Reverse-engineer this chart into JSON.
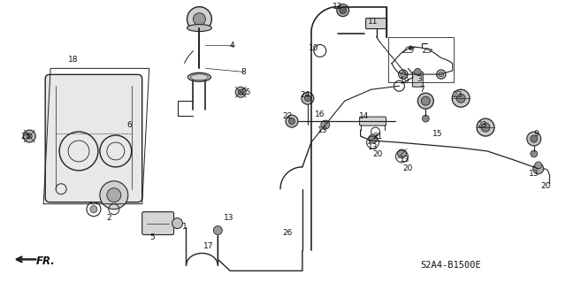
{
  "diagram_code": "S2A4-B1500E",
  "background_color": "#ffffff",
  "line_color": "#222222",
  "text_color": "#111111",
  "figsize": [
    6.4,
    3.19
  ],
  "dpi": 100
}
